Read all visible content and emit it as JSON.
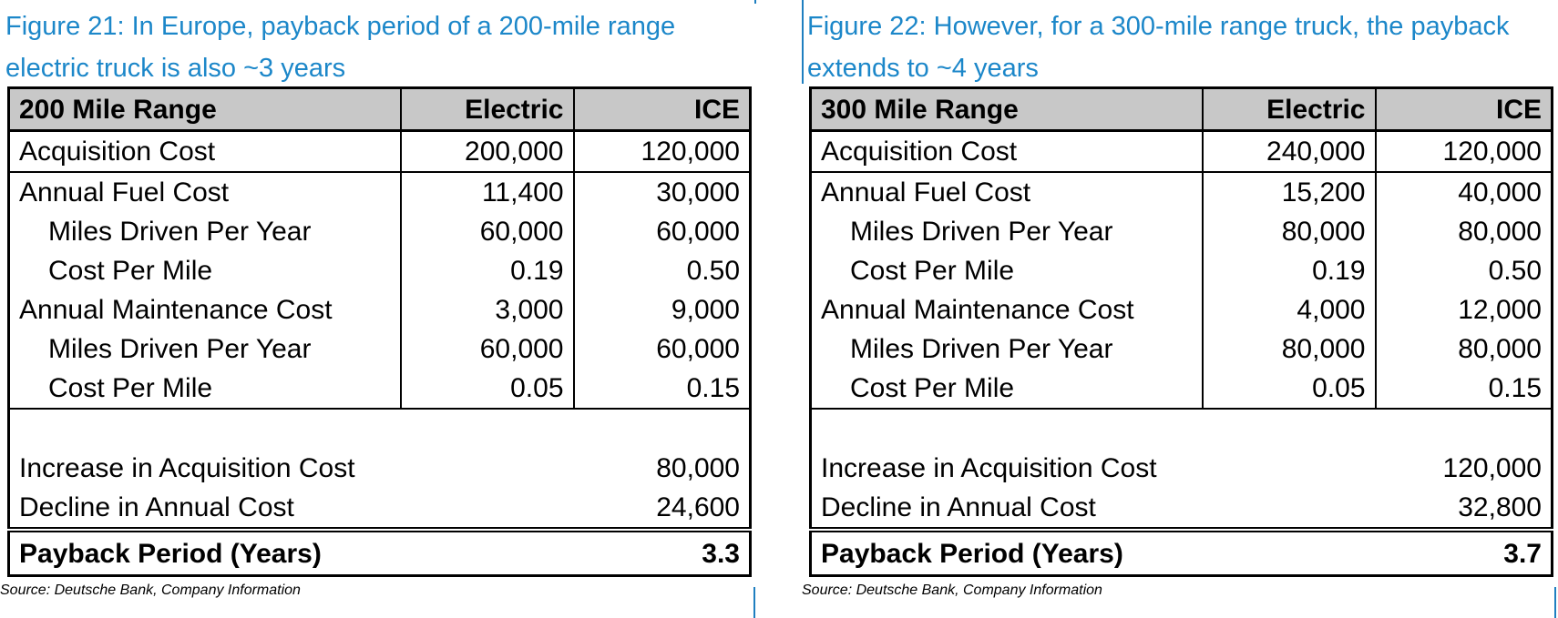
{
  "colors": {
    "title": "#1c87c9",
    "header_bg": "#c8c8c8",
    "frame": "#1f7fc0"
  },
  "panels": [
    {
      "title": "Figure 21: In Europe, payback period of a 200-mile range electric truck is also ~3 years",
      "header": [
        "200 Mile Range",
        "Electric",
        "ICE"
      ],
      "rows": {
        "acq": [
          "Acquisition Cost",
          "200,000",
          "120,000"
        ],
        "fuel": [
          "Annual Fuel Cost",
          "11,400",
          "30,000"
        ],
        "fuel_miles": [
          "Miles Driven Per Year",
          "60,000",
          "60,000"
        ],
        "fuel_cpm": [
          "Cost Per Mile",
          "0.19",
          "0.50"
        ],
        "maint": [
          "Annual Maintenance Cost",
          "3,000",
          "9,000"
        ],
        "maint_miles": [
          "Miles Driven Per Year",
          "60,000",
          "60,000"
        ],
        "maint_cpm": [
          "Cost Per Mile",
          "0.05",
          "0.15"
        ]
      },
      "increase": [
        "Increase in Acquisition Cost",
        "80,000"
      ],
      "decline": [
        "Decline in Annual Cost",
        "24,600"
      ],
      "payback": [
        "Payback Period (Years)",
        "3.3"
      ],
      "source": "Source: Deutsche Bank, Company Information"
    },
    {
      "title": "Figure 22: However, for a 300-mile range truck, the payback extends to ~4 years",
      "header": [
        "300 Mile Range",
        "Electric",
        "ICE"
      ],
      "rows": {
        "acq": [
          "Acquisition Cost",
          "240,000",
          "120,000"
        ],
        "fuel": [
          "Annual Fuel Cost",
          "15,200",
          "40,000"
        ],
        "fuel_miles": [
          "Miles Driven Per Year",
          "80,000",
          "80,000"
        ],
        "fuel_cpm": [
          "Cost Per Mile",
          "0.19",
          "0.50"
        ],
        "maint": [
          "Annual Maintenance Cost",
          "4,000",
          "12,000"
        ],
        "maint_miles": [
          "Miles Driven Per Year",
          "80,000",
          "80,000"
        ],
        "maint_cpm": [
          "Cost Per Mile",
          "0.05",
          "0.15"
        ]
      },
      "increase": [
        "Increase in Acquisition Cost",
        "120,000"
      ],
      "decline": [
        "Decline in Annual Cost",
        "32,800"
      ],
      "payback": [
        "Payback Period (Years)",
        "3.7"
      ],
      "source": "Source: Deutsche Bank, Company Information"
    }
  ]
}
